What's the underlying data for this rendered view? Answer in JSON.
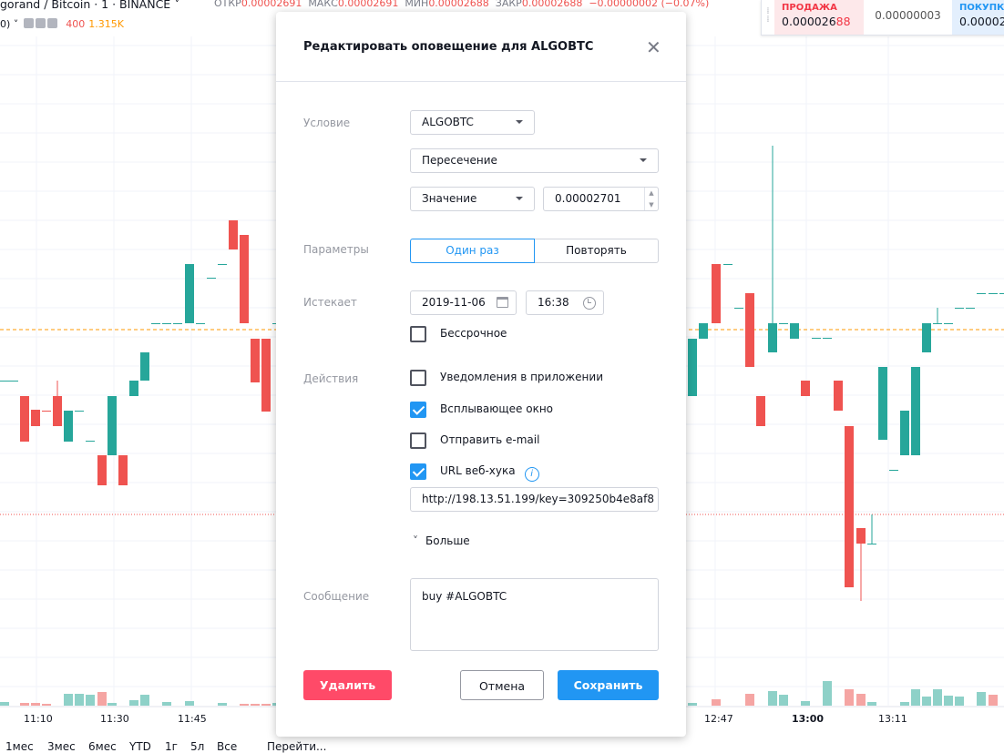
{
  "legend": {
    "symbol": "gorand / Bitcoin · 1 · BINANCE",
    "open_label": "ОТКР",
    "open": "0.00002691",
    "high_label": "МАКС",
    "high": "0.00002691",
    "low_label": "МИН",
    "low": "0.00002688",
    "close_label": "ЗАКР",
    "close": "0.00002688",
    "change": "−0.00000002 (−0.07%)",
    "volume_prefix": "0)",
    "volume_a": "400",
    "volume_b": "1.315K"
  },
  "trade_panel": {
    "sell_label": "ПРОДАЖА",
    "sell_price_main": "0.000026",
    "sell_price_highlight": "88",
    "spread": "0.00000003",
    "buy_label": "ПОКУПКА",
    "buy_price": "0.00002"
  },
  "time_labels": [
    "11:10",
    "11:30",
    "11:45",
    "12:47",
    "13:00",
    "13:11"
  ],
  "range_buttons": [
    "1мес",
    "3мес",
    "6мес",
    "YTD",
    "1г",
    "5л",
    "Все"
  ],
  "goto_label": "Перейти...",
  "dialog": {
    "title": "Редактировать оповещение для ALGOBTC",
    "condition_label": "Условие",
    "symbol_select": "ALGOBTC",
    "crossing_select": "Пересечение",
    "value_select": "Значение",
    "value_input": "0.00002701",
    "options_label": "Параметры",
    "once_label": "Один раз",
    "repeat_label": "Повторять",
    "expires_label": "Истекает",
    "expiry_date": "2019-11-06",
    "expiry_time": "16:38",
    "unlimited_label": "Бессрочное",
    "actions_label": "Действия",
    "notify_app_label": "Уведомления в приложении",
    "popup_label": "Всплывающее окно",
    "email_label": "Отправить e-mail",
    "webhook_label": "URL веб-хука",
    "webhook_url": "http://198.13.51.199/key=309250b4e8af8",
    "more_label": "Больше",
    "message_label": "Сообщение",
    "message_text": "buy #ALGOBTC",
    "delete_label": "Удалить",
    "cancel_label": "Отмена",
    "save_label": "Сохранить"
  },
  "colors": {
    "up": "#26a69a",
    "down": "#ef5350",
    "accent": "#2196f3",
    "delete": "#ff4a68"
  }
}
